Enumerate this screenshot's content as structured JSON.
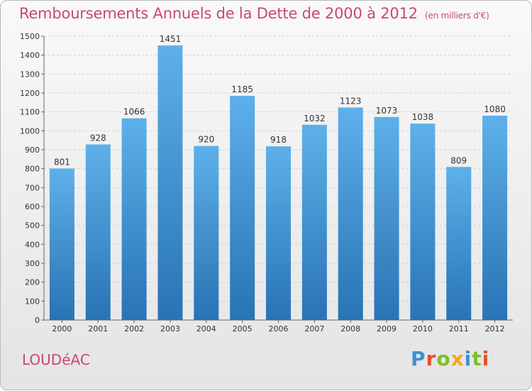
{
  "chart_data": {
    "type": "bar",
    "title": "Remboursements Annuels de la Dette de 2000 à 2012",
    "subtitle": "(en milliers d'€)",
    "categories": [
      "2000",
      "2001",
      "2002",
      "2003",
      "2004",
      "2005",
      "2006",
      "2007",
      "2008",
      "2009",
      "2010",
      "2011",
      "2012"
    ],
    "values": [
      801,
      928,
      1066,
      1451,
      920,
      1185,
      918,
      1032,
      1123,
      1073,
      1038,
      809,
      1080
    ],
    "ylim": [
      0,
      1500
    ],
    "yticks": [
      0,
      100,
      200,
      300,
      400,
      500,
      600,
      700,
      800,
      900,
      1000,
      1100,
      1200,
      1300,
      1400,
      1500
    ],
    "grid": true,
    "bar_color_top": "#5eb0ea",
    "bar_color_bottom": "#2873b4"
  },
  "footer": {
    "town": "LOUDéAC",
    "logo": "Proxiti",
    "logo_colors": [
      "#3f8fd6",
      "#e8512a",
      "#7bbf2a",
      "#f2a81d",
      "#3f8fd6",
      "#7bbf2a",
      "#e8512a"
    ]
  }
}
